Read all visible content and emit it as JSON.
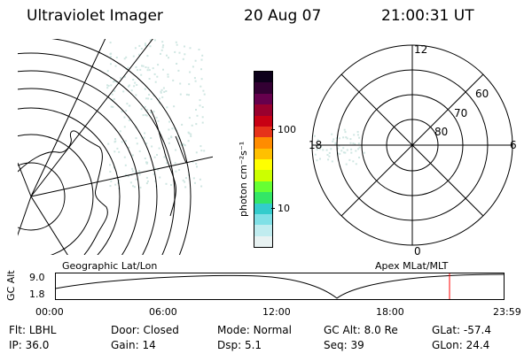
{
  "header": {
    "instrument": "Ultraviolet Imager",
    "date": "20 Aug 07",
    "time": "21:00:31 UT"
  },
  "colorbar": {
    "unit_label": "photon cm⁻²s⁻¹",
    "ticks": [
      "100",
      "10"
    ],
    "colors": [
      "#0d001a",
      "#330033",
      "#66004d",
      "#99002e",
      "#c80014",
      "#e6331a",
      "#ff8c00",
      "#ffc000",
      "#ffff00",
      "#ccff00",
      "#66ff33",
      "#33e666",
      "#33cccc",
      "#80e0e6",
      "#c0ecef",
      "#e8f2f2"
    ]
  },
  "polar_plot": {
    "mlt_labels": [
      "12",
      "18",
      "6",
      "0"
    ],
    "lat_labels": [
      "60",
      "70",
      "80"
    ]
  },
  "timeline": {
    "left_label": "Geographic Lat/Lon",
    "right_label": "Apex MLat/MLT",
    "axis_title": "GC Alt",
    "y_ticks": [
      "9.0",
      "1.8"
    ],
    "x_ticks": [
      "00:00",
      "06:00",
      "12:00",
      "18:00",
      "23:59"
    ],
    "marker_color": "#ff0000"
  },
  "footer": {
    "row1": [
      {
        "label": "Flt:",
        "value": "LBHL"
      },
      {
        "label": "Door:",
        "value": "Closed"
      },
      {
        "label": "Mode:",
        "value": "Normal"
      },
      {
        "label": "GC Alt:",
        "value": "8.0 Re"
      },
      {
        "label": "GLat:",
        "value": "-57.4"
      }
    ],
    "row2": [
      {
        "label": "IP:",
        "value": "36.0"
      },
      {
        "label": "Gain:",
        "value": "14"
      },
      {
        "label": "Dsp:",
        "value": "5.1"
      },
      {
        "label": "Seq:",
        "value": "39"
      },
      {
        "label": "GLon:",
        "value": "24.4"
      }
    ]
  }
}
